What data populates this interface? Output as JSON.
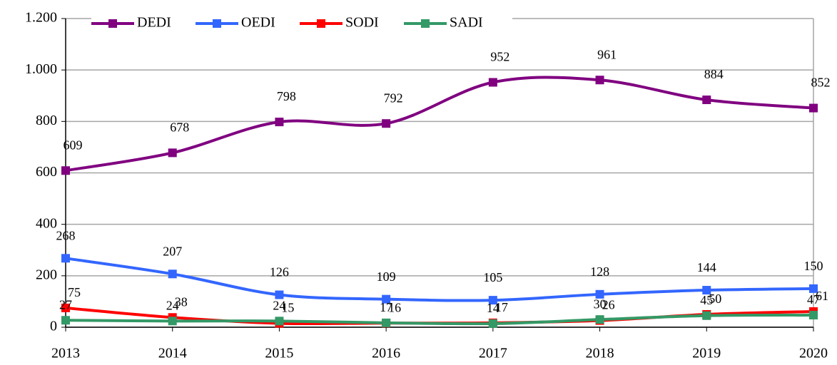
{
  "chart_data": {
    "type": "line",
    "categories": [
      "2013",
      "2014",
      "2015",
      "2016",
      "2017",
      "2018",
      "2019",
      "2020"
    ],
    "series": [
      {
        "name": "DEDI",
        "color": "#800080",
        "label_color": "#8a7fa6",
        "values": [
          609,
          678,
          798,
          792,
          952,
          961,
          884,
          852
        ]
      },
      {
        "name": "OEDI",
        "color": "#3366ff",
        "label_color": "#1a1a8c",
        "values": [
          268,
          207,
          126,
          109,
          105,
          128,
          144,
          150
        ]
      },
      {
        "name": "SODI",
        "color": "#ff0000",
        "label_color": "#b04a26",
        "values": [
          75,
          38,
          15,
          16,
          17,
          26,
          50,
          61
        ]
      },
      {
        "name": "SADI",
        "color": "#339966",
        "label_color": "#24552e",
        "values": [
          27,
          24,
          24,
          17,
          14,
          30,
          45,
          47
        ]
      }
    ],
    "ylim": [
      0,
      1200
    ],
    "yticks": [
      0,
      200,
      400,
      600,
      800,
      {
        "value": 1000,
        "label": "1.000"
      },
      {
        "value": 1200,
        "label": "1.200"
      }
    ],
    "grid": true,
    "smooth": true,
    "legend": "top"
  }
}
